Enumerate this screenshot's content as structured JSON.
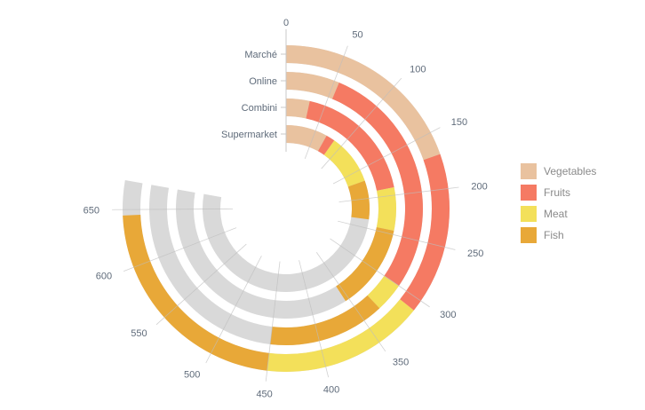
{
  "chart_data": {
    "type": "radial-stacked-bar",
    "title": "",
    "categories": [
      "Marché",
      "Online",
      "Combini",
      "Supermarket"
    ],
    "series": [
      {
        "name": "Vegetables",
        "color": "#e9c29f",
        "values": [
          170,
          55,
          30,
          70
        ]
      },
      {
        "name": "Fruits",
        "color": "#f57a63",
        "values": [
          140,
          245,
          160,
          15
        ]
      },
      {
        "name": "Meat",
        "color": "#f3e05a",
        "values": [
          140,
          30,
          55,
          85
        ]
      },
      {
        "name": "Fish",
        "color": "#e8a838",
        "values": [
          195,
          120,
          110,
          65
        ]
      }
    ],
    "axis": {
      "min": 0,
      "max": 675,
      "ticks": [
        0,
        50,
        100,
        150,
        200,
        250,
        300,
        350,
        400,
        450,
        500,
        550,
        600,
        650
      ]
    },
    "legend": {
      "position": "right"
    },
    "background_track_color": "#d9d9d9"
  }
}
